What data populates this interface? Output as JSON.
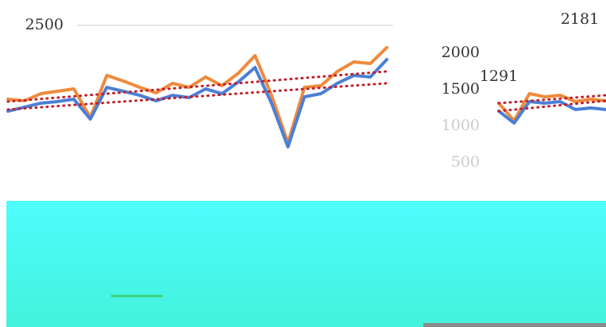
{
  "chart_data": [
    {
      "type": "line",
      "ylim": [
        0,
        2500
      ],
      "yticks": [
        2500
      ],
      "series": [
        {
          "color": "#ef8a3c",
          "values": [
            1489,
            1467,
            1565,
            1598,
            1630,
            1239,
            1815,
            1739,
            1652,
            1576,
            1707,
            1652,
            1793,
            1674,
            1848,
            2087,
            1543,
            891,
            1652,
            1674,
            1870,
            2000,
            1978,
            2196
          ]
        },
        {
          "color": "#4a7fd6",
          "values": [
            1326,
            1380,
            1435,
            1457,
            1489,
            1217,
            1652,
            1598,
            1543,
            1467,
            1543,
            1511,
            1630,
            1565,
            1728,
            1924,
            1435,
            837,
            1522,
            1565,
            1707,
            1815,
            1793,
            2033
          ]
        },
        {
          "color": "#c0202a",
          "dotted": true,
          "values": [
            1457,
            1870
          ]
        },
        {
          "color": "#c0202a",
          "dotted": true,
          "values": [
            1348,
            1707
          ]
        }
      ]
    },
    {
      "type": "line",
      "ylim": [
        0,
        2000
      ],
      "yticks": [
        2000,
        1500,
        1000,
        500
      ],
      "annotations": [
        "2181",
        "1291"
      ],
      "series": [
        {
          "color": "#ef8a3c",
          "values": [
            1315,
            1076,
            1446,
            1402,
            1424,
            1337,
            1370,
            1348
          ]
        },
        {
          "color": "#4a7fd6",
          "values": [
            1207,
            1043,
            1337,
            1315,
            1337,
            1228,
            1250,
            1228
          ]
        },
        {
          "color": "#c0202a",
          "dotted": true,
          "values": [
            1315,
            1424
          ]
        },
        {
          "color": "#c0202a",
          "dotted": true,
          "values": [
            1207,
            1348
          ]
        }
      ]
    }
  ]
}
